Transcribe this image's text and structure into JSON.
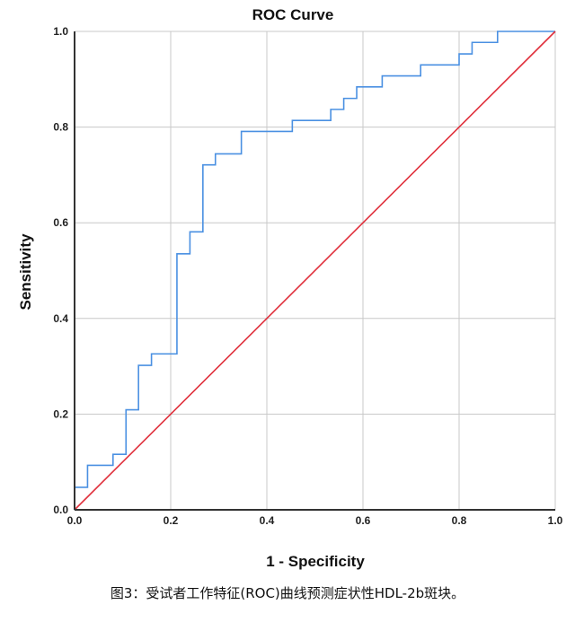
{
  "figure": {
    "caption": "图3：受试者工作特征(ROC)曲线预测症状性HDL-2b斑块。"
  },
  "chart_data": {
    "type": "line",
    "title": "ROC Curve",
    "xlabel": "1 - Specificity",
    "ylabel": "Sensitivity",
    "xlim": [
      0.0,
      1.0
    ],
    "ylim": [
      0.0,
      1.0
    ],
    "xticks": [
      "0.0",
      "0.2",
      "0.4",
      "0.6",
      "0.8",
      "1.0"
    ],
    "yticks": [
      "0.0",
      "0.2",
      "0.4",
      "0.6",
      "0.8",
      "1.0"
    ],
    "grid": true,
    "series": [
      {
        "color": "#4a90e2",
        "points": [
          [
            0.0,
            0.0
          ],
          [
            0.0,
            0.047
          ],
          [
            0.027,
            0.047
          ],
          [
            0.027,
            0.093
          ],
          [
            0.08,
            0.093
          ],
          [
            0.08,
            0.116
          ],
          [
            0.107,
            0.116
          ],
          [
            0.107,
            0.209
          ],
          [
            0.133,
            0.209
          ],
          [
            0.133,
            0.302
          ],
          [
            0.16,
            0.302
          ],
          [
            0.16,
            0.326
          ],
          [
            0.213,
            0.326
          ],
          [
            0.213,
            0.535
          ],
          [
            0.24,
            0.535
          ],
          [
            0.24,
            0.581
          ],
          [
            0.267,
            0.581
          ],
          [
            0.267,
            0.721
          ],
          [
            0.293,
            0.721
          ],
          [
            0.293,
            0.744
          ],
          [
            0.347,
            0.744
          ],
          [
            0.347,
            0.791
          ],
          [
            0.453,
            0.791
          ],
          [
            0.453,
            0.814
          ],
          [
            0.533,
            0.814
          ],
          [
            0.533,
            0.837
          ],
          [
            0.56,
            0.837
          ],
          [
            0.56,
            0.86
          ],
          [
            0.587,
            0.86
          ],
          [
            0.587,
            0.884
          ],
          [
            0.64,
            0.884
          ],
          [
            0.64,
            0.907
          ],
          [
            0.72,
            0.907
          ],
          [
            0.72,
            0.93
          ],
          [
            0.8,
            0.93
          ],
          [
            0.8,
            0.953
          ],
          [
            0.827,
            0.953
          ],
          [
            0.827,
            0.977
          ],
          [
            0.88,
            0.977
          ],
          [
            0.88,
            1.0
          ],
          [
            1.0,
            1.0
          ]
        ]
      },
      {
        "color": "#e0303c",
        "points": [
          [
            0.0,
            0.0
          ],
          [
            1.0,
            1.0
          ]
        ]
      }
    ]
  }
}
